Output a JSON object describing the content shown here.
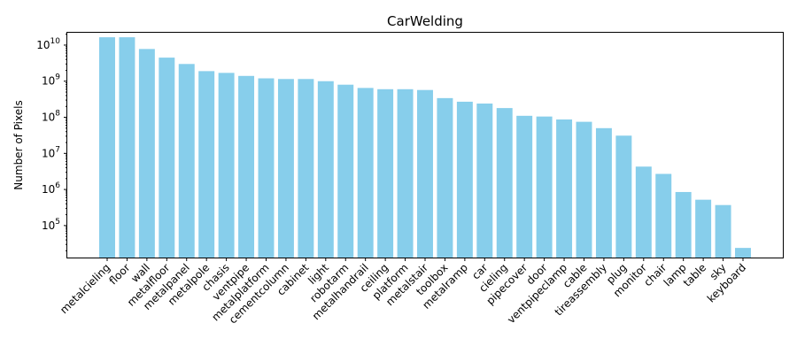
{
  "chart_data": {
    "type": "bar",
    "title": "CarWelding",
    "xlabel": "",
    "ylabel": "Number of Pixels",
    "yscale": "log",
    "ylim": [
      13000,
      22000000000
    ],
    "yticks": [
      100000,
      1000000,
      10000000,
      100000000,
      1000000000,
      10000000000
    ],
    "ytick_labels": [
      "10^5",
      "10^6",
      "10^7",
      "10^8",
      "10^9",
      "10^10"
    ],
    "grid": false,
    "legend": "none",
    "bar_color": "#87ceeb",
    "categories": [
      "metalcieling",
      "floor",
      "wall",
      "metalfloor",
      "metalpanel",
      "metalpole",
      "chasis",
      "ventpipe",
      "metalplatform",
      "cementcolumn",
      "cabinet",
      "light",
      "robotarm",
      "metalhandrail",
      "ceiling",
      "platform",
      "metalstair",
      "toolbox",
      "metalramp",
      "car",
      "cieling",
      "pipecover",
      "door",
      "ventpipeclamp",
      "cable",
      "tireassembly",
      "plug",
      "monitor",
      "chair",
      "lamp",
      "table",
      "sky",
      "keyboard"
    ],
    "values": [
      16500000000,
      16500000000,
      7800000000,
      4500000000,
      3000000000,
      1900000000,
      1700000000,
      1400000000,
      1200000000,
      1150000000,
      1150000000,
      1000000000,
      800000000,
      650000000,
      600000000,
      600000000,
      570000000,
      340000000,
      270000000,
      240000000,
      180000000,
      110000000,
      105000000,
      87000000,
      75000000,
      50000000,
      31000000,
      4300000,
      2700000,
      850000,
      520000,
      370000,
      24000
    ]
  }
}
